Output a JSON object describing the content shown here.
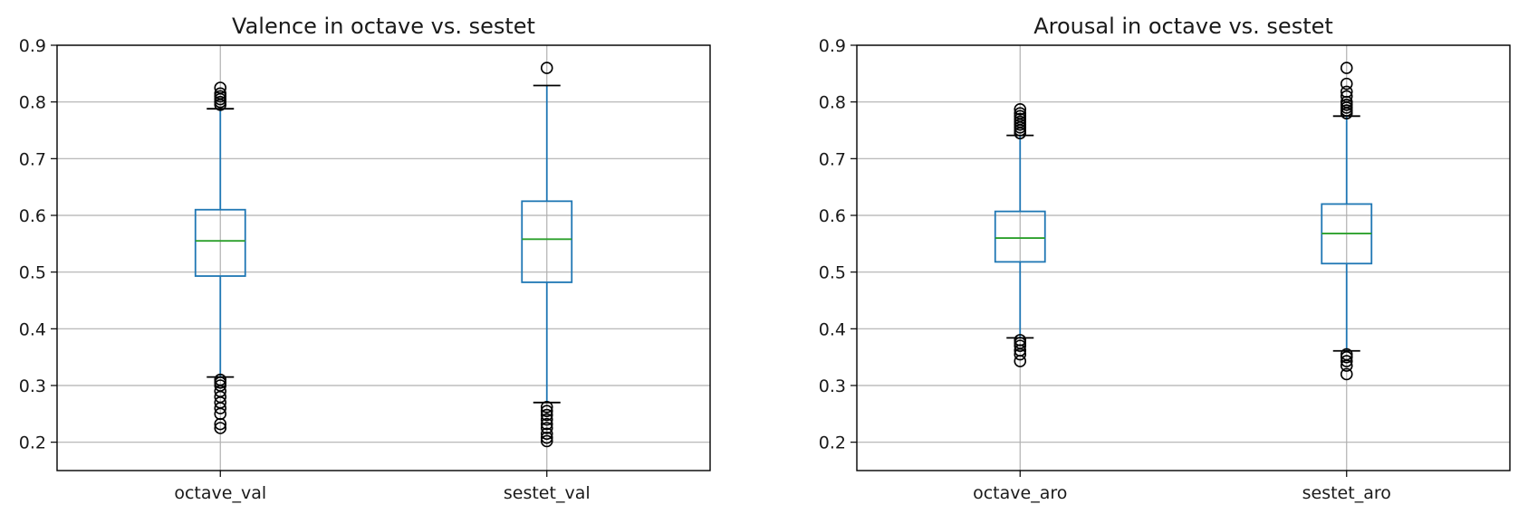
{
  "chart_data": [
    {
      "type": "box",
      "title": "Valence in octave vs. sestet",
      "categories": [
        "octave_val",
        "sestet_val"
      ],
      "ylim": [
        0.15,
        0.9
      ],
      "yticks": [
        0.2,
        0.3,
        0.4,
        0.5,
        0.6,
        0.7,
        0.8,
        0.9
      ],
      "grid": true,
      "box_color": "#1f77b4",
      "median_color": "#2ca02c",
      "series": [
        {
          "q1": 0.493,
          "median": 0.555,
          "q3": 0.61,
          "whisker_low": 0.315,
          "whisker_high": 0.788,
          "outliers": [
            0.795,
            0.8,
            0.805,
            0.81,
            0.815,
            0.825,
            0.31,
            0.305,
            0.3,
            0.29,
            0.28,
            0.27,
            0.26,
            0.25,
            0.232,
            0.225
          ]
        },
        {
          "q1": 0.482,
          "median": 0.558,
          "q3": 0.625,
          "whisker_low": 0.27,
          "whisker_high": 0.829,
          "outliers": [
            0.86,
            0.262,
            0.255,
            0.248,
            0.24,
            0.232,
            0.225,
            0.215,
            0.208,
            0.202
          ]
        }
      ]
    },
    {
      "type": "box",
      "title": "Arousal in octave vs. sestet",
      "categories": [
        "octave_aro",
        "sestet_aro"
      ],
      "ylim": [
        0.15,
        0.9
      ],
      "yticks": [
        0.2,
        0.3,
        0.4,
        0.5,
        0.6,
        0.7,
        0.8,
        0.9
      ],
      "grid": true,
      "box_color": "#1f77b4",
      "median_color": "#2ca02c",
      "series": [
        {
          "q1": 0.518,
          "median": 0.56,
          "q3": 0.607,
          "whisker_low": 0.384,
          "whisker_high": 0.741,
          "outliers": [
            0.745,
            0.75,
            0.755,
            0.76,
            0.765,
            0.77,
            0.775,
            0.78,
            0.787,
            0.38,
            0.375,
            0.37,
            0.362,
            0.355,
            0.343
          ]
        },
        {
          "q1": 0.515,
          "median": 0.568,
          "q3": 0.62,
          "whisker_low": 0.361,
          "whisker_high": 0.775,
          "outliers": [
            0.78,
            0.785,
            0.79,
            0.795,
            0.8,
            0.81,
            0.818,
            0.832,
            0.86,
            0.355,
            0.35,
            0.343,
            0.335,
            0.32
          ]
        }
      ]
    }
  ]
}
